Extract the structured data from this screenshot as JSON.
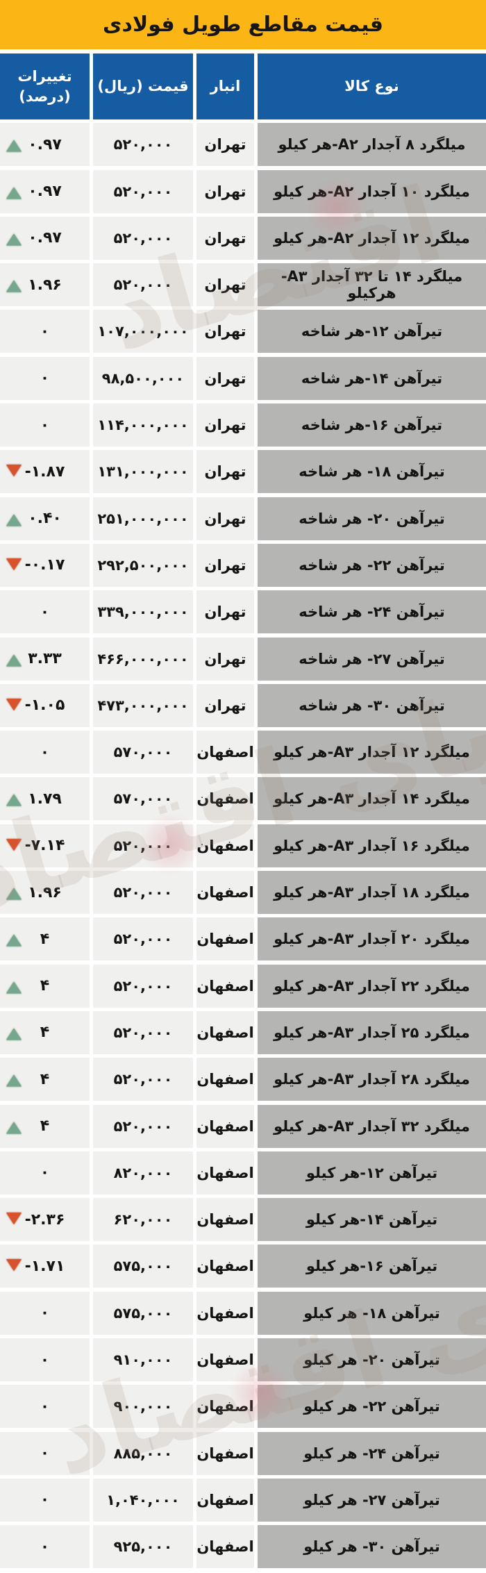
{
  "title": "قیمت مقاطع طویل فولادی",
  "watermark_text": "دنیای اقتصاد",
  "colors": {
    "title_bg": "#FBB615",
    "header_bg": "#155CA2",
    "header_text": "#FFFFFF",
    "product_cell_bg": "#B5B5B3",
    "value_cell_bg": "#F0F0EE",
    "text": "#141414",
    "up_triangle": "#75A78C",
    "down_triangle": "#D8532B"
  },
  "table": {
    "columns": {
      "product": "نوع کالا",
      "warehouse": "انبار",
      "price": "قیمت (ریال)",
      "change_line1": "تغییرات",
      "change_line2": "(درصد)"
    },
    "rows": [
      {
        "product": "میلگرد ۸ آجدار A۲-هر کیلو",
        "warehouse": "تهران",
        "price": "۵۲۰,۰۰۰",
        "change": "۰.۹۷",
        "dir": "up"
      },
      {
        "product": "میلگرد ۱۰ آجدار A۲-هر کیلو",
        "warehouse": "تهران",
        "price": "۵۲۰,۰۰۰",
        "change": "۰.۹۷",
        "dir": "up"
      },
      {
        "product": "میلگرد ۱۲ آجدار A۲-هر کیلو",
        "warehouse": "تهران",
        "price": "۵۲۰,۰۰۰",
        "change": "۰.۹۷",
        "dir": "up"
      },
      {
        "product": "میلگرد ۱۴ تا ۳۲ آجدار A۳-هرکیلو",
        "warehouse": "تهران",
        "price": "۵۲۰,۰۰۰",
        "change": "۱.۹۶",
        "dir": "up"
      },
      {
        "product": "تیرآهن ۱۲-هر شاخه",
        "warehouse": "تهران",
        "price": "۱۰۷,۰۰۰,۰۰۰",
        "change": "۰",
        "dir": "flat"
      },
      {
        "product": "تیرآهن ۱۴-هر شاخه",
        "warehouse": "تهران",
        "price": "۹۸,۵۰۰,۰۰۰",
        "change": "۰",
        "dir": "flat"
      },
      {
        "product": "تیرآهن ۱۶-هر شاخه",
        "warehouse": "تهران",
        "price": "۱۱۴,۰۰۰,۰۰۰",
        "change": "۰",
        "dir": "flat"
      },
      {
        "product": "تیرآهن ۱۸- هر شاخه",
        "warehouse": "تهران",
        "price": "۱۳۱,۰۰۰,۰۰۰",
        "change": "-۱.۸۷",
        "dir": "down"
      },
      {
        "product": "تیرآهن ۲۰- هر شاخه",
        "warehouse": "تهران",
        "price": "۲۵۱,۰۰۰,۰۰۰",
        "change": "۰.۴۰",
        "dir": "up"
      },
      {
        "product": "تیرآهن ۲۲- هر شاخه",
        "warehouse": "تهران",
        "price": "۲۹۲,۵۰۰,۰۰۰",
        "change": "-۰.۱۷",
        "dir": "down"
      },
      {
        "product": "تیرآهن ۲۴- هر شاخه",
        "warehouse": "تهران",
        "price": "۳۳۹,۰۰۰,۰۰۰",
        "change": "۰",
        "dir": "flat"
      },
      {
        "product": "تیرآهن ۲۷- هر شاخه",
        "warehouse": "تهران",
        "price": "۴۶۶,۰۰۰,۰۰۰",
        "change": "۳.۳۳",
        "dir": "up"
      },
      {
        "product": "تیرآهن ۳۰- هر شاخه",
        "warehouse": "تهران",
        "price": "۴۷۳,۰۰۰,۰۰۰",
        "change": "-۱.۰۵",
        "dir": "down"
      },
      {
        "product": "میلگرد ۱۲ آجدار A۳-هر کیلو",
        "warehouse": "اصفهان",
        "price": "۵۷۰,۰۰۰",
        "change": "۰",
        "dir": "flat"
      },
      {
        "product": "میلگرد ۱۴ آجدار A۳-هر کیلو",
        "warehouse": "اصفهان",
        "price": "۵۷۰,۰۰۰",
        "change": "۱.۷۹",
        "dir": "up"
      },
      {
        "product": "میلگرد ۱۶ آجدار A۳-هر کیلو",
        "warehouse": "اصفهان",
        "price": "۵۲۰,۰۰۰",
        "change": "-۷.۱۴",
        "dir": "down"
      },
      {
        "product": "میلگرد ۱۸ آجدار A۳-هر کیلو",
        "warehouse": "اصفهان",
        "price": "۵۲۰,۰۰۰",
        "change": "۱.۹۶",
        "dir": "up"
      },
      {
        "product": "میلگرد ۲۰ آجدار A۳-هر کیلو",
        "warehouse": "اصفهان",
        "price": "۵۲۰,۰۰۰",
        "change": "۴",
        "dir": "up"
      },
      {
        "product": "میلگرد ۲۲ آجدار A۳-هر کیلو",
        "warehouse": "اصفهان",
        "price": "۵۲۰,۰۰۰",
        "change": "۴",
        "dir": "up"
      },
      {
        "product": "میلگرد ۲۵ آجدار A۳-هر کیلو",
        "warehouse": "اصفهان",
        "price": "۵۲۰,۰۰۰",
        "change": "۴",
        "dir": "up"
      },
      {
        "product": "میلگرد ۲۸ آجدار A۳-هر کیلو",
        "warehouse": "اصفهان",
        "price": "۵۲۰,۰۰۰",
        "change": "۴",
        "dir": "up"
      },
      {
        "product": "میلگرد ۳۲ آجدار A۳-هر کیلو",
        "warehouse": "اصفهان",
        "price": "۵۲۰,۰۰۰",
        "change": "۴",
        "dir": "up"
      },
      {
        "product": "تیرآهن ۱۲-هر کیلو",
        "warehouse": "اصفهان",
        "price": "۸۲۰,۰۰۰",
        "change": "۰",
        "dir": "flat"
      },
      {
        "product": "تیرآهن ۱۴-هر کیلو",
        "warehouse": "اصفهان",
        "price": "۶۲۰,۰۰۰",
        "change": "-۲.۳۶",
        "dir": "down"
      },
      {
        "product": "تیرآهن ۱۶-هر کیلو",
        "warehouse": "اصفهان",
        "price": "۵۷۵,۰۰۰",
        "change": "-۱.۷۱",
        "dir": "down"
      },
      {
        "product": "تیرآهن ۱۸- هر کیلو",
        "warehouse": "اصفهان",
        "price": "۵۷۵,۰۰۰",
        "change": "۰",
        "dir": "flat"
      },
      {
        "product": "تیرآهن ۲۰- هر کیلو",
        "warehouse": "اصفهان",
        "price": "۹۱۰,۰۰۰",
        "change": "۰",
        "dir": "flat"
      },
      {
        "product": "تیرآهن ۲۲- هر کیلو",
        "warehouse": "اصفهان",
        "price": "۹۰۰,۰۰۰",
        "change": "۰",
        "dir": "flat"
      },
      {
        "product": "تیرآهن ۲۴- هر کیلو",
        "warehouse": "اصفهان",
        "price": "۸۸۵,۰۰۰",
        "change": "۰",
        "dir": "flat"
      },
      {
        "product": "تیرآهن ۲۷- هر کیلو",
        "warehouse": "اصفهان",
        "price": "۱,۰۴۰,۰۰۰",
        "change": "۰",
        "dir": "flat"
      },
      {
        "product": "تیرآهن ۳۰- هر کیلو",
        "warehouse": "اصفهان",
        "price": "۹۲۵,۰۰۰",
        "change": "۰",
        "dir": "flat"
      }
    ]
  },
  "chart_data": {
    "type": "table",
    "title": "قیمت مقاطع طویل فولادی",
    "columns": [
      "نوع کالا",
      "انبار",
      "قیمت (ریال)",
      "تغییرات (درصد)"
    ],
    "rows": [
      [
        "میلگرد ۸ آجدار A۲-هر کیلو",
        "تهران",
        520000,
        0.97
      ],
      [
        "میلگرد ۱۰ آجدار A۲-هر کیلو",
        "تهران",
        520000,
        0.97
      ],
      [
        "میلگرد ۱۲ آجدار A۲-هر کیلو",
        "تهران",
        520000,
        0.97
      ],
      [
        "میلگرد ۱۴ تا ۳۲ آجدار A۳-هرکیلو",
        "تهران",
        520000,
        1.96
      ],
      [
        "تیرآهن ۱۲-هر شاخه",
        "تهران",
        107000000,
        0
      ],
      [
        "تیرآهن ۱۴-هر شاخه",
        "تهران",
        98500000,
        0
      ],
      [
        "تیرآهن ۱۶-هر شاخه",
        "تهران",
        114000000,
        0
      ],
      [
        "تیرآهن ۱۸- هر شاخه",
        "تهران",
        131000000,
        -1.87
      ],
      [
        "تیرآهن ۲۰- هر شاخه",
        "تهران",
        251000000,
        0.4
      ],
      [
        "تیرآهن ۲۲- هر شاخه",
        "تهران",
        292500000,
        -0.17
      ],
      [
        "تیرآهن ۲۴- هر شاخه",
        "تهران",
        339000000,
        0
      ],
      [
        "تیرآهن ۲۷- هر شاخه",
        "تهران",
        466000000,
        3.33
      ],
      [
        "تیرآهن ۳۰- هر شاخه",
        "تهران",
        473000000,
        -1.05
      ],
      [
        "میلگرد ۱۲ آجدار A۳-هر کیلو",
        "اصفهان",
        570000,
        0
      ],
      [
        "میلگرد ۱۴ آجدار A۳-هر کیلو",
        "اصفهان",
        570000,
        1.79
      ],
      [
        "میلگرد ۱۶ آجدار A۳-هر کیلو",
        "اصفهان",
        520000,
        -7.14
      ],
      [
        "میلگرد ۱۸ آجدار A۳-هر کیلو",
        "اصفهان",
        520000,
        1.96
      ],
      [
        "میلگرد ۲۰ آجدار A۳-هر کیلو",
        "اصفهان",
        520000,
        4
      ],
      [
        "میلگرد ۲۲ آجدار A۳-هر کیلو",
        "اصفهان",
        520000,
        4
      ],
      [
        "میلگرد ۲۵ آجدار A۳-هر کیلو",
        "اصفهان",
        520000,
        4
      ],
      [
        "میلگرد ۲۸ آجدار A۳-هر کیلو",
        "اصفهان",
        520000,
        4
      ],
      [
        "میلگرد ۳۲ آجدار A۳-هر کیلو",
        "اصفهان",
        520000,
        4
      ],
      [
        "تیرآهن ۱۲-هر کیلو",
        "اصفهان",
        820000,
        0
      ],
      [
        "تیرآهن ۱۴-هر کیلو",
        "اصفهان",
        620000,
        -2.36
      ],
      [
        "تیرآهن ۱۶-هر کیلو",
        "اصفهان",
        575000,
        -1.71
      ],
      [
        "تیرآهن ۱۸- هر کیلو",
        "اصفهان",
        575000,
        0
      ],
      [
        "تیرآهن ۲۰- هر کیلو",
        "اصفهان",
        910000,
        0
      ],
      [
        "تیرآهن ۲۲- هر کیلو",
        "اصفهان",
        900000,
        0
      ],
      [
        "تیرآهن ۲۴- هر کیلو",
        "اصفهان",
        885000,
        0
      ],
      [
        "تیرآهن ۲۷- هر کیلو",
        "اصفهان",
        1040000,
        0
      ],
      [
        "تیرآهن ۳۰- هر کیلو",
        "اصفهان",
        925000,
        0
      ]
    ]
  }
}
